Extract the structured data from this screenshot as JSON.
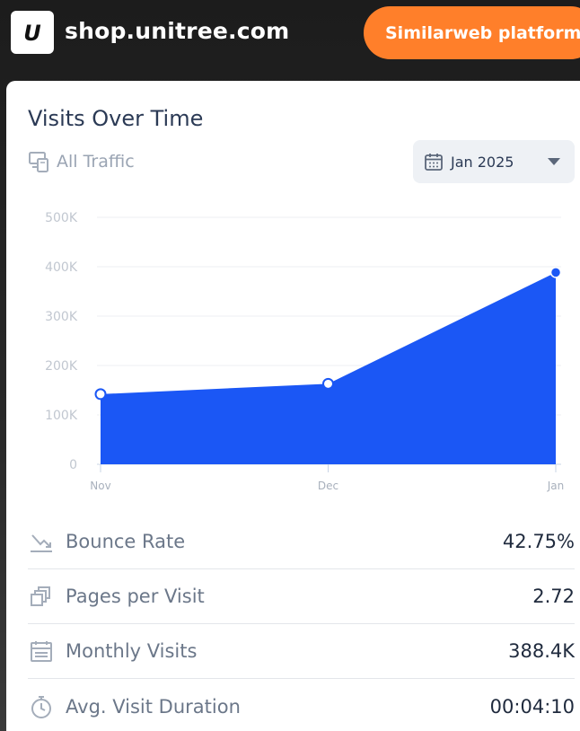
{
  "header": {
    "site": "shop.unitree.com",
    "logo_letter": "U",
    "platform_button": "Similarweb platform"
  },
  "card": {
    "title": "Visits Over Time",
    "traffic_filter": "All Traffic",
    "date_selector": "Jan 2025"
  },
  "chart_data": {
    "type": "area",
    "title": "Visits Over Time",
    "categories": [
      "Nov",
      "Dec",
      "Jan"
    ],
    "series": [
      {
        "name": "Visits",
        "values": [
          142000,
          163000,
          388400
        ]
      }
    ],
    "yticks": [
      0,
      100000,
      200000,
      300000,
      400000,
      500000
    ],
    "ytick_labels": [
      "0",
      "100K",
      "200K",
      "300K",
      "400K",
      "500K"
    ],
    "ylim": [
      0,
      500000
    ],
    "grid": true,
    "color": "#1b57f5"
  },
  "metrics": [
    {
      "label": "Bounce Rate",
      "value": "42.75%",
      "icon": "bounce-rate-icon"
    },
    {
      "label": "Pages per Visit",
      "value": "2.72",
      "icon": "pages-icon"
    },
    {
      "label": "Monthly Visits",
      "value": "388.4K",
      "icon": "calendar-icon"
    },
    {
      "label": "Avg. Visit Duration",
      "value": "00:04:10",
      "icon": "stopwatch-icon"
    }
  ],
  "colors": {
    "accent": "#ff7f2a",
    "series": "#1b57f5",
    "title": "#2b3a55"
  }
}
